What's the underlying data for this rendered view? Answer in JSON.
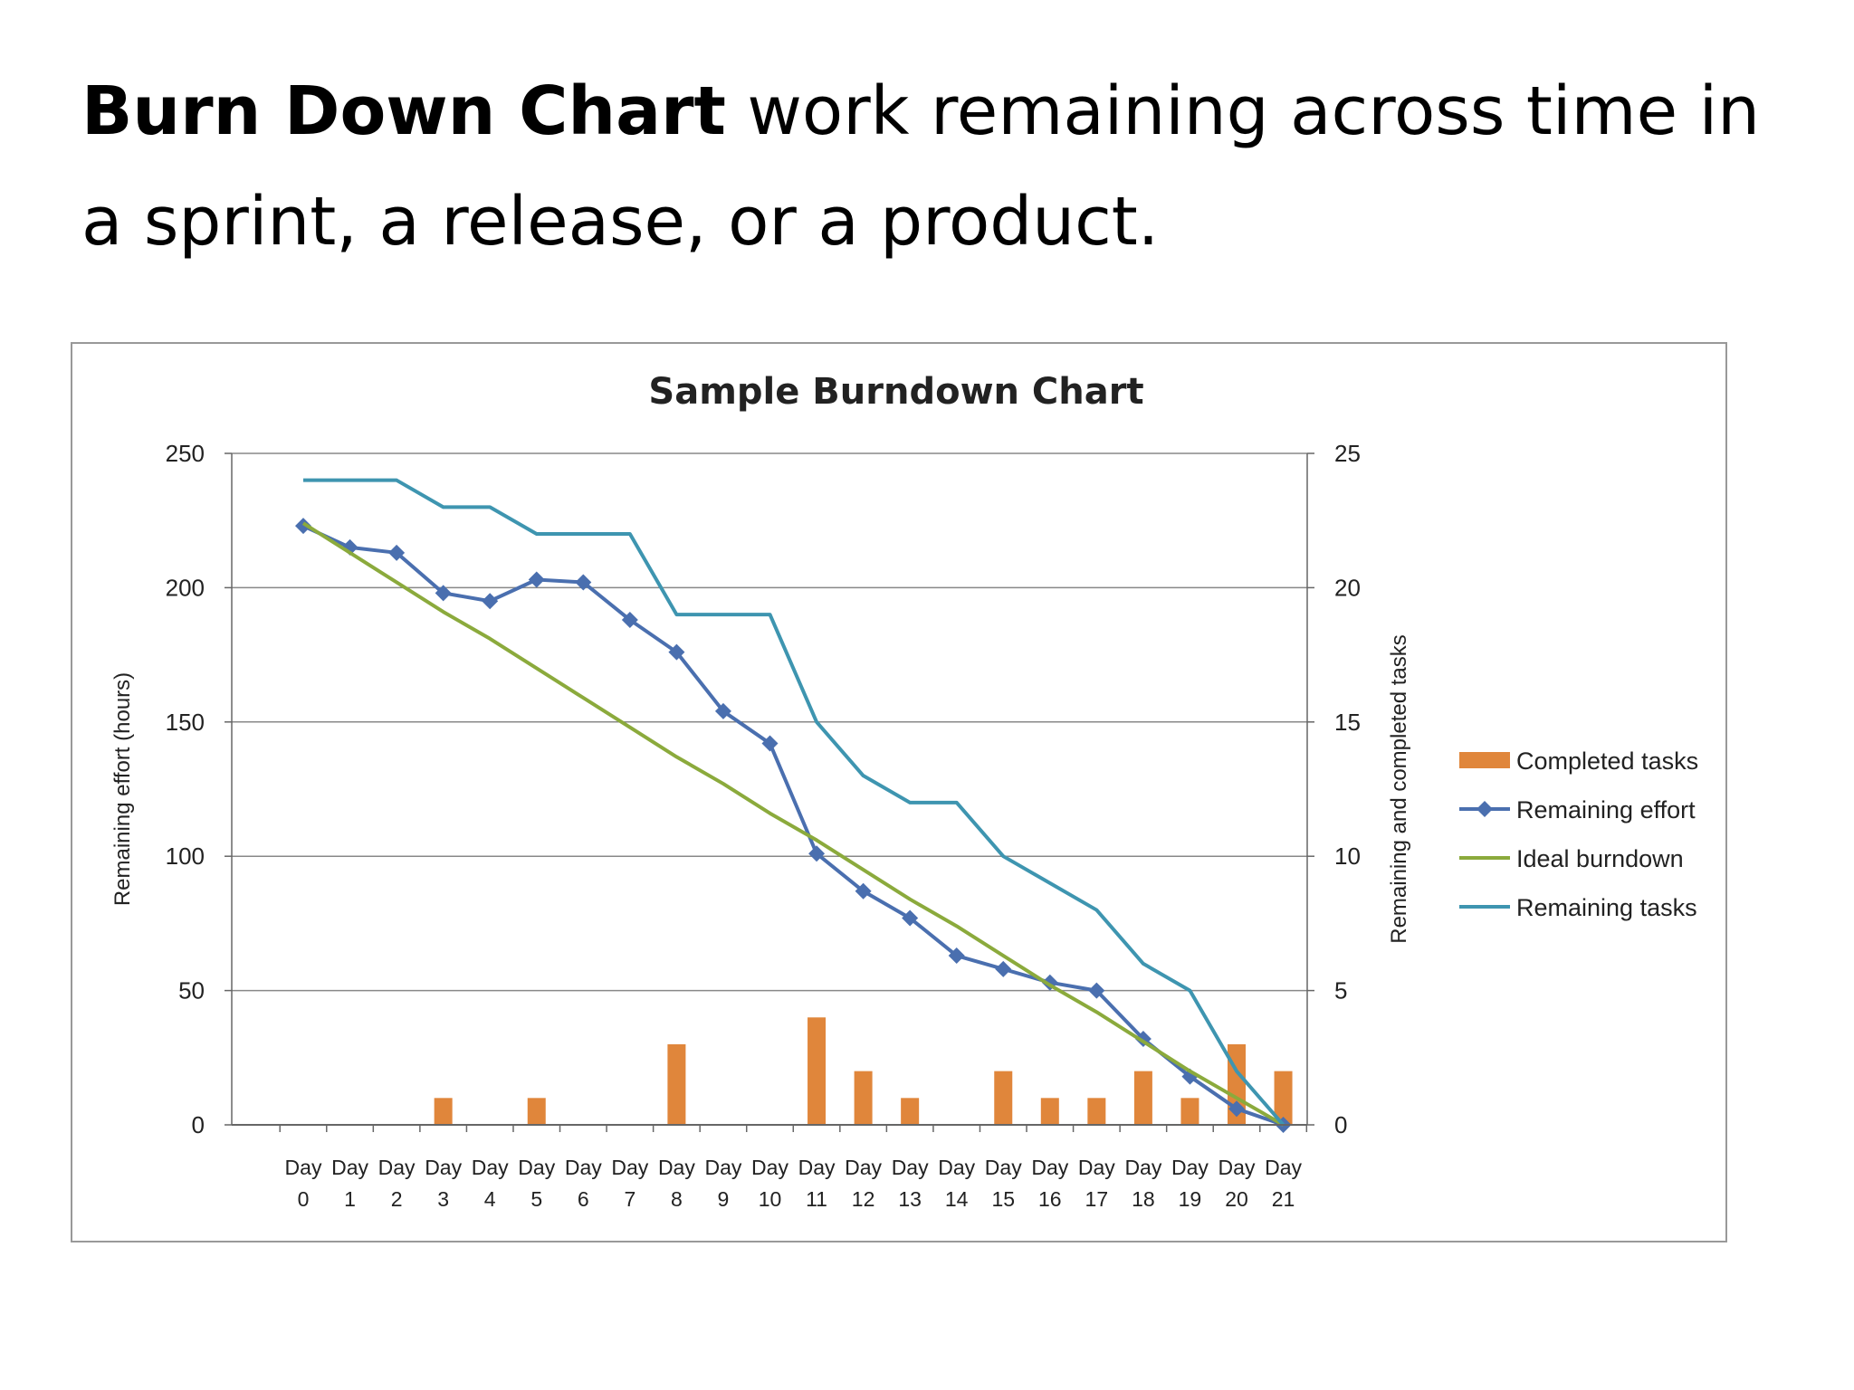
{
  "slide": {
    "title_bold": "Burn Down Chart",
    "title_rest": "  work remaining across time in a sprint, a release, or a product."
  },
  "chart_data": {
    "type": "bar+line",
    "title": "Sample Burndown Chart",
    "ylabel_left": "Remaining effort (hours)",
    "ylabel_right": "Remaining and completed tasks",
    "ylim_left": [
      0,
      250
    ],
    "ylim_right": [
      0,
      25
    ],
    "yticks_left": [
      "0",
      "50",
      "100",
      "150",
      "200",
      "250"
    ],
    "yticks_right": [
      "0",
      "5",
      "10",
      "15",
      "20",
      "25"
    ],
    "grid": true,
    "legend_position": "right",
    "categories": [
      {
        "line1": "Day",
        "line2": "0"
      },
      {
        "line1": "Day",
        "line2": "1"
      },
      {
        "line1": "Day",
        "line2": "2"
      },
      {
        "line1": "Day",
        "line2": "3"
      },
      {
        "line1": "Day",
        "line2": "4"
      },
      {
        "line1": "Day",
        "line2": "5"
      },
      {
        "line1": "Day",
        "line2": "6"
      },
      {
        "line1": "Day",
        "line2": "7"
      },
      {
        "line1": "Day",
        "line2": "8"
      },
      {
        "line1": "Day",
        "line2": "9"
      },
      {
        "line1": "Day",
        "line2": "10"
      },
      {
        "line1": "Day",
        "line2": "11"
      },
      {
        "line1": "Day",
        "line2": "12"
      },
      {
        "line1": "Day",
        "line2": "13"
      },
      {
        "line1": "Day",
        "line2": "14"
      },
      {
        "line1": "Day",
        "line2": "15"
      },
      {
        "line1": "Day",
        "line2": "16"
      },
      {
        "line1": "Day",
        "line2": "17"
      },
      {
        "line1": "Day",
        "line2": "18"
      },
      {
        "line1": "Day",
        "line2": "19"
      },
      {
        "line1": "Day",
        "line2": "20"
      },
      {
        "line1": "Day",
        "line2": "21"
      }
    ],
    "series": [
      {
        "name": "Completed tasks",
        "type": "bar",
        "axis": "right",
        "color": "#E0863B",
        "values": [
          0,
          0,
          0,
          1,
          0,
          1,
          0,
          0,
          3,
          0,
          0,
          4,
          2,
          1,
          0,
          2,
          1,
          1,
          2,
          1,
          3,
          2
        ]
      },
      {
        "name": "Remaining effort",
        "type": "line",
        "axis": "left",
        "color": "#4A6FAF",
        "marker": "diamond",
        "values": [
          223,
          215,
          213,
          198,
          195,
          203,
          202,
          188,
          176,
          154,
          142,
          101,
          87,
          77,
          63,
          58,
          53,
          50,
          32,
          18,
          6,
          0
        ]
      },
      {
        "name": "Ideal burndown",
        "type": "line",
        "axis": "left",
        "color": "#8BAA3C",
        "values": [
          224,
          213,
          202,
          191,
          181,
          170,
          159,
          148,
          137,
          127,
          116,
          106,
          95,
          84,
          74,
          63,
          52,
          42,
          31,
          20,
          10,
          0
        ]
      },
      {
        "name": "Remaining tasks",
        "type": "line",
        "axis": "right",
        "color": "#3E95B0",
        "values": [
          24,
          24,
          24,
          23,
          23,
          22,
          22,
          22,
          19,
          19,
          19,
          15,
          13,
          12,
          12,
          10,
          9,
          8,
          6,
          5,
          2,
          0
        ]
      }
    ],
    "colors": {
      "frame": "#999999",
      "grid": "#888888",
      "axis": "#666666"
    }
  }
}
